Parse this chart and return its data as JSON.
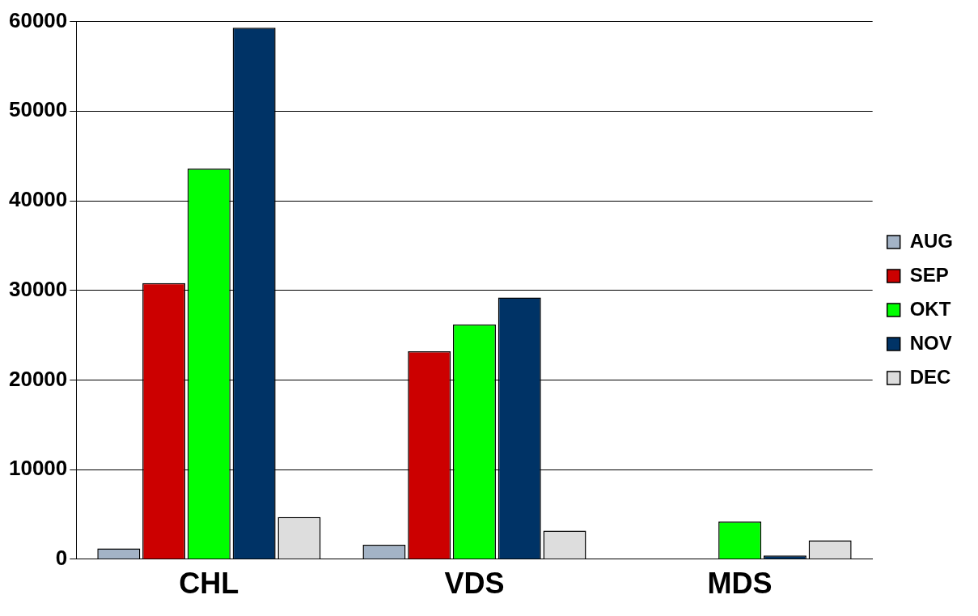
{
  "chart_data": {
    "type": "bar",
    "categories": [
      "CHL",
      "VDS",
      "MDS"
    ],
    "series": [
      {
        "name": "AUG",
        "color": "#a3b3c6",
        "values": [
          1200,
          1600,
          0
        ]
      },
      {
        "name": "SEP",
        "color": "#cc0000",
        "values": [
          30800,
          23200,
          0
        ]
      },
      {
        "name": "OKT",
        "color": "#00ff00",
        "values": [
          43600,
          26200,
          4200
        ]
      },
      {
        "name": "NOV",
        "color": "#003366",
        "values": [
          59300,
          29200,
          400
        ]
      },
      {
        "name": "DEC",
        "color": "#dddddd",
        "values": [
          4700,
          3200,
          2100
        ]
      }
    ],
    "ylim": [
      0,
      60000
    ],
    "yticks": [
      0,
      10000,
      20000,
      30000,
      40000,
      50000,
      60000
    ],
    "grid": "y",
    "legend": "right"
  }
}
